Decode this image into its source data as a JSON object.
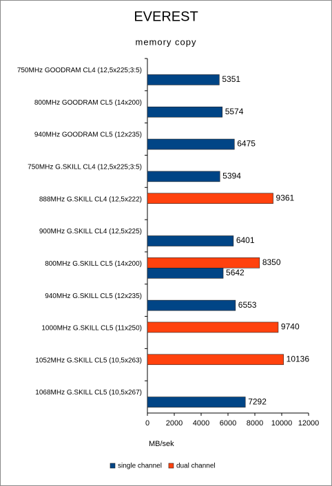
{
  "chart_data": {
    "type": "hbar",
    "title": "EVEREST",
    "subtitle": "memory copy",
    "x_label": "MB/sek",
    "categories": [
      "750MHz GOODRAM CL4 (12,5x225;3:5)",
      "800MHz GOODRAM CL5 (14x200)",
      "940MHz GOODRAM CL5 (12x235)",
      "750MHz G.SKILL CL4 (12,5x225;3:5)",
      "888MHz G.SKILL CL4 (12,5x222)",
      "900MHz G.SKILL CL4 (12,5x225)",
      "800MHz G.SKILL CL5 (14x200)",
      "940MHz G.SKILL CL5 (12x235)",
      "1000MHz G.SKILL CL5 (11x250)",
      "1052MHz G.SKILL CL5 (10,5x263)",
      "1068MHz G.SKILL CL5 (10,5x267)"
    ],
    "series": [
      {
        "name": "single channel",
        "color": "#004586",
        "values": [
          5351,
          5574,
          6475,
          5394,
          null,
          6401,
          5642,
          6553,
          null,
          null,
          7292
        ]
      },
      {
        "name": "dual channel",
        "color": "#ff420e",
        "values": [
          null,
          null,
          null,
          null,
          9361,
          null,
          8350,
          null,
          9740,
          10136,
          null
        ]
      }
    ],
    "xlim": [
      0,
      12000
    ],
    "xticks": [
      0,
      2000,
      4000,
      6000,
      8000,
      10000,
      12000
    ],
    "legend": "bottom"
  }
}
